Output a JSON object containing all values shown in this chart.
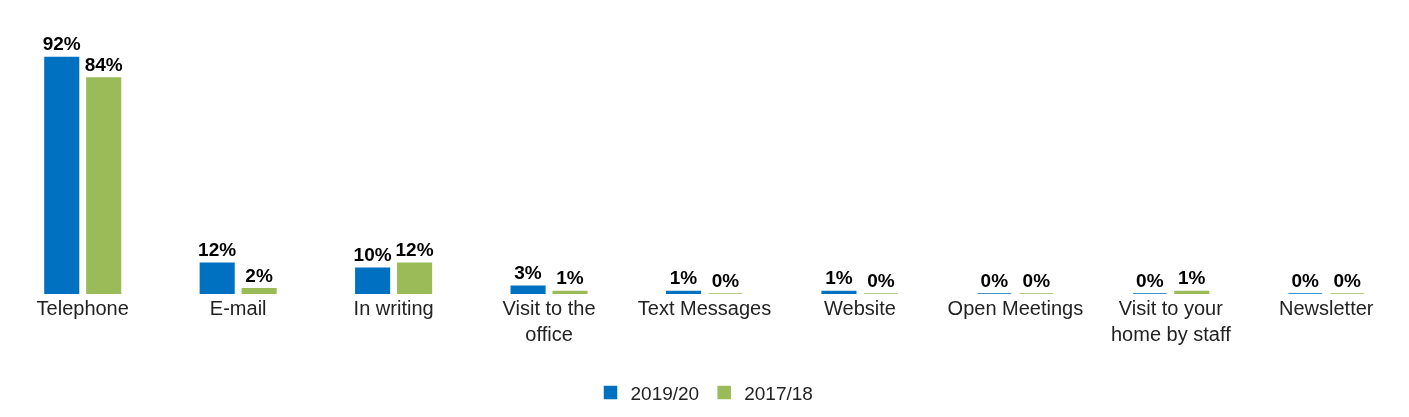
{
  "chart_data": {
    "type": "bar",
    "categories": [
      "Telephone",
      "E-mail",
      "In writing",
      "Visit to the office",
      "Text Messages",
      "Website",
      "Open Meetings",
      "Visit to your home by staff",
      "Newsletter"
    ],
    "series": [
      {
        "name": "2019/20",
        "color": "#0070c0",
        "values": [
          92,
          12,
          10,
          3,
          1,
          1,
          0,
          0,
          0
        ],
        "value_labels": [
          "92%",
          "12%",
          "10%",
          "3%",
          "1%",
          "1%",
          "0%",
          "0%",
          "0%"
        ]
      },
      {
        "name": "2017/18",
        "color": "#9bbb59",
        "values": [
          84,
          2,
          12,
          1,
          0,
          0,
          0,
          1,
          0
        ],
        "value_labels": [
          "84%",
          "2%",
          "12%",
          "1%",
          "0%",
          "0%",
          "0%",
          "1%",
          "0%"
        ]
      }
    ],
    "legend": "bottom"
  }
}
